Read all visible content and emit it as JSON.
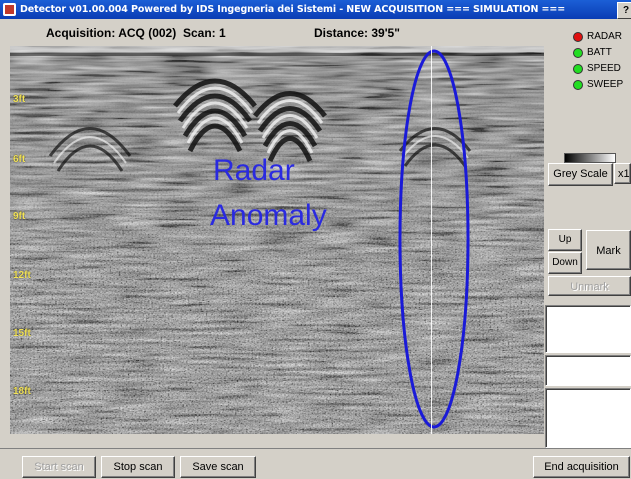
{
  "window": {
    "title": "Detector v01.00.004 Powered by IDS Ingegneria dei Sistemi - NEW ACQUISITION === SIMULATION ===",
    "sys_button": "?"
  },
  "info": {
    "acquisition": "Acquisition: ACQ (002)",
    "scan": "Scan: 1",
    "distance": "Distance:  39'5\""
  },
  "radar": {
    "depth_labels": [
      "3ft",
      "6ft",
      "9ft",
      "12ft",
      "15ft",
      "18ft"
    ],
    "annotation_line1": "Radar",
    "annotation_line2": "Anomaly",
    "annotation_color": "#2a2ae0"
  },
  "status": [
    {
      "label": "RADAR",
      "color": "#e01010"
    },
    {
      "label": "BATT",
      "color": "#22dd22"
    },
    {
      "label": "SPEED",
      "color": "#22dd22"
    },
    {
      "label": "SWEEP",
      "color": "#22dd22"
    }
  ],
  "controls": {
    "grey_scale": "Grey Scale",
    "multiplier": "x1",
    "up": "Up",
    "down": "Down",
    "mark": "Mark",
    "unmark": "Unmark"
  },
  "bottom": {
    "start_scan": "Start scan",
    "stop_scan": "Stop scan",
    "save_scan": "Save scan",
    "end_acquisition": "End acquisition"
  }
}
